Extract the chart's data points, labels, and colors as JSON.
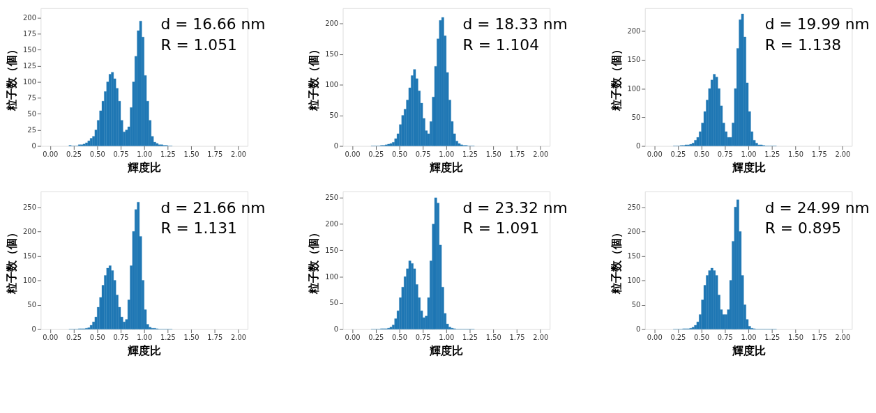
{
  "chart_data": [
    {
      "type": "histogram",
      "xlabel": "輝度比",
      "ylabel": "粒子数（個）",
      "annotations": [
        "d = 16.66 nm",
        "R = 1.051"
      ],
      "color": "#1f77b4",
      "grid": false,
      "bins": [
        0.2,
        0.225,
        0.25,
        0.275,
        0.3,
        0.325,
        0.35,
        0.375,
        0.4,
        0.425,
        0.45,
        0.475,
        0.5,
        0.525,
        0.55,
        0.575,
        0.6,
        0.625,
        0.65,
        0.675,
        0.7,
        0.725,
        0.75,
        0.775,
        0.8,
        0.825,
        0.85,
        0.875,
        0.9,
        0.925,
        0.95,
        0.975,
        1.0,
        1.025,
        1.05,
        1.075,
        1.1,
        1.125,
        1.15,
        1.175,
        1.2,
        1.225,
        1.25,
        1.275,
        1.3
      ],
      "values": [
        1,
        0,
        0,
        0,
        2,
        2,
        3,
        5,
        8,
        12,
        15,
        25,
        40,
        55,
        70,
        85,
        100,
        112,
        115,
        105,
        90,
        70,
        40,
        22,
        25,
        30,
        60,
        100,
        140,
        180,
        195,
        170,
        110,
        70,
        40,
        15,
        6,
        4,
        2,
        2,
        1,
        1,
        0,
        0
      ],
      "xlim": [
        -0.1,
        2.1
      ],
      "xticks": [
        {
          "value": 0,
          "label": "0.00"
        },
        {
          "value": 0.25,
          "label": "0.25"
        },
        {
          "value": 0.5,
          "label": "0.50"
        },
        {
          "value": 0.75,
          "label": "0.75"
        },
        {
          "value": 1,
          "label": "1.00"
        },
        {
          "value": 1.25,
          "label": "1.25"
        },
        {
          "value": 1.5,
          "label": "1.50"
        },
        {
          "value": 1.75,
          "label": "1.75"
        },
        {
          "value": 2,
          "label": "2.00"
        }
      ],
      "ylim": [
        0,
        215
      ],
      "yticks": [
        0,
        25,
        50,
        75,
        100,
        125,
        150,
        175,
        200
      ]
    },
    {
      "type": "histogram",
      "xlabel": "輝度比",
      "ylabel": "粒子数（個）",
      "annotations": [
        "d = 18.33 nm",
        "R = 1.104"
      ],
      "color": "#1f77b4",
      "grid": false,
      "bins": [
        0.2,
        0.225,
        0.25,
        0.275,
        0.3,
        0.325,
        0.35,
        0.375,
        0.4,
        0.425,
        0.45,
        0.475,
        0.5,
        0.525,
        0.55,
        0.575,
        0.6,
        0.625,
        0.65,
        0.675,
        0.7,
        0.725,
        0.75,
        0.775,
        0.8,
        0.825,
        0.85,
        0.875,
        0.9,
        0.925,
        0.95,
        0.975,
        1.0,
        1.025,
        1.05,
        1.075,
        1.1,
        1.125,
        1.15,
        1.175,
        1.2,
        1.225,
        1.25,
        1.275,
        1.3
      ],
      "values": [
        0,
        0,
        0,
        0,
        1,
        1,
        2,
        3,
        4,
        6,
        12,
        20,
        35,
        50,
        60,
        75,
        95,
        115,
        125,
        110,
        90,
        70,
        45,
        25,
        20,
        40,
        80,
        130,
        175,
        205,
        210,
        180,
        120,
        75,
        40,
        20,
        8,
        4,
        2,
        1,
        1,
        0,
        0,
        0
      ],
      "xlim": [
        -0.1,
        2.1
      ],
      "xticks": [
        {
          "value": 0,
          "label": "0.00"
        },
        {
          "value": 0.25,
          "label": "0.25"
        },
        {
          "value": 0.5,
          "label": "0.50"
        },
        {
          "value": 0.75,
          "label": "0.75"
        },
        {
          "value": 1,
          "label": "1.00"
        },
        {
          "value": 1.25,
          "label": "1.25"
        },
        {
          "value": 1.5,
          "label": "1.50"
        },
        {
          "value": 1.75,
          "label": "1.75"
        },
        {
          "value": 2,
          "label": "2.00"
        }
      ],
      "ylim": [
        0,
        225
      ],
      "yticks": [
        0,
        50,
        100,
        150,
        200
      ]
    },
    {
      "type": "histogram",
      "xlabel": "輝度比",
      "ylabel": "粒子数（個）",
      "annotations": [
        "d = 19.99 nm",
        "R = 1.138"
      ],
      "color": "#1f77b4",
      "grid": false,
      "bins": [
        0.2,
        0.225,
        0.25,
        0.275,
        0.3,
        0.325,
        0.35,
        0.375,
        0.4,
        0.425,
        0.45,
        0.475,
        0.5,
        0.525,
        0.55,
        0.575,
        0.6,
        0.625,
        0.65,
        0.675,
        0.7,
        0.725,
        0.75,
        0.775,
        0.8,
        0.825,
        0.85,
        0.875,
        0.9,
        0.925,
        0.95,
        0.975,
        1.0,
        1.025,
        1.05,
        1.075,
        1.1,
        1.125,
        1.15,
        1.175,
        1.2,
        1.225,
        1.25,
        1.275,
        1.3
      ],
      "values": [
        0,
        0,
        0,
        1,
        1,
        2,
        2,
        3,
        5,
        10,
        15,
        25,
        40,
        60,
        80,
        100,
        115,
        125,
        120,
        100,
        70,
        40,
        25,
        15,
        15,
        40,
        100,
        170,
        220,
        230,
        190,
        110,
        60,
        25,
        10,
        5,
        2,
        2,
        1,
        0,
        0,
        0,
        0,
        0
      ],
      "xlim": [
        -0.1,
        2.1
      ],
      "xticks": [
        {
          "value": 0,
          "label": "0.00"
        },
        {
          "value": 0.25,
          "label": "0.25"
        },
        {
          "value": 0.5,
          "label": "0.50"
        },
        {
          "value": 0.75,
          "label": "0.75"
        },
        {
          "value": 1,
          "label": "1.00"
        },
        {
          "value": 1.25,
          "label": "1.25"
        },
        {
          "value": 1.5,
          "label": "1.50"
        },
        {
          "value": 1.75,
          "label": "1.75"
        },
        {
          "value": 2,
          "label": "2.00"
        }
      ],
      "ylim": [
        0,
        240
      ],
      "yticks": [
        0,
        50,
        100,
        150,
        200
      ]
    },
    {
      "type": "histogram",
      "xlabel": "輝度比",
      "ylabel": "粒子数（個）",
      "annotations": [
        "d = 21.66 nm",
        "R = 1.131"
      ],
      "color": "#1f77b4",
      "grid": false,
      "bins": [
        0.2,
        0.225,
        0.25,
        0.275,
        0.3,
        0.325,
        0.35,
        0.375,
        0.4,
        0.425,
        0.45,
        0.475,
        0.5,
        0.525,
        0.55,
        0.575,
        0.6,
        0.625,
        0.65,
        0.675,
        0.7,
        0.725,
        0.75,
        0.775,
        0.8,
        0.825,
        0.85,
        0.875,
        0.9,
        0.925,
        0.95,
        0.975,
        1.0,
        1.025,
        1.05,
        1.075,
        1.1,
        1.125,
        1.15,
        1.175,
        1.2,
        1.225,
        1.25,
        1.275,
        1.3
      ],
      "values": [
        0,
        0,
        0,
        0,
        1,
        1,
        1,
        2,
        3,
        8,
        15,
        25,
        45,
        65,
        90,
        110,
        125,
        130,
        120,
        100,
        70,
        45,
        25,
        15,
        20,
        60,
        130,
        200,
        245,
        260,
        190,
        100,
        40,
        10,
        4,
        2,
        2,
        1,
        0,
        0,
        0,
        0,
        0,
        0
      ],
      "xlim": [
        -0.1,
        2.1
      ],
      "xticks": [
        {
          "value": 0,
          "label": "0.00"
        },
        {
          "value": 0.25,
          "label": "0.25"
        },
        {
          "value": 0.5,
          "label": "0.50"
        },
        {
          "value": 0.75,
          "label": "0.75"
        },
        {
          "value": 1,
          "label": "1.00"
        },
        {
          "value": 1.25,
          "label": "1.25"
        },
        {
          "value": 1.5,
          "label": "1.50"
        },
        {
          "value": 1.75,
          "label": "1.75"
        },
        {
          "value": 2,
          "label": "2.00"
        }
      ],
      "ylim": [
        0,
        282
      ],
      "yticks": [
        0,
        50,
        100,
        150,
        200,
        250
      ]
    },
    {
      "type": "histogram",
      "xlabel": "輝度比",
      "ylabel": "粒子数（個）",
      "annotations": [
        "d = 23.32 nm",
        "R = 1.091"
      ],
      "color": "#1f77b4",
      "grid": false,
      "bins": [
        0.2,
        0.225,
        0.25,
        0.275,
        0.3,
        0.325,
        0.35,
        0.375,
        0.4,
        0.425,
        0.45,
        0.475,
        0.5,
        0.525,
        0.55,
        0.575,
        0.6,
        0.625,
        0.65,
        0.675,
        0.7,
        0.725,
        0.75,
        0.775,
        0.8,
        0.825,
        0.85,
        0.875,
        0.9,
        0.925,
        0.95,
        0.975,
        1.0,
        1.025,
        1.05,
        1.075,
        1.1,
        1.125,
        1.15,
        1.175,
        1.2,
        1.225,
        1.25,
        1.275,
        1.3
      ],
      "values": [
        0,
        0,
        0,
        0,
        1,
        1,
        1,
        2,
        4,
        8,
        20,
        35,
        60,
        80,
        100,
        115,
        130,
        125,
        115,
        85,
        60,
        35,
        22,
        25,
        60,
        130,
        200,
        250,
        240,
        160,
        80,
        30,
        10,
        4,
        2,
        1,
        0,
        0,
        0,
        0,
        0,
        0,
        0,
        0
      ],
      "xlim": [
        -0.1,
        2.1
      ],
      "xticks": [
        {
          "value": 0,
          "label": "0.00"
        },
        {
          "value": 0.25,
          "label": "0.25"
        },
        {
          "value": 0.5,
          "label": "0.50"
        },
        {
          "value": 0.75,
          "label": "0.75"
        },
        {
          "value": 1,
          "label": "1.00"
        },
        {
          "value": 1.25,
          "label": "1.25"
        },
        {
          "value": 1.5,
          "label": "1.50"
        },
        {
          "value": 1.75,
          "label": "1.75"
        },
        {
          "value": 2,
          "label": "2.00"
        }
      ],
      "ylim": [
        0,
        262
      ],
      "yticks": [
        0,
        50,
        100,
        150,
        200,
        250
      ]
    },
    {
      "type": "histogram",
      "xlabel": "輝度比",
      "ylabel": "粒子数（個）",
      "annotations": [
        "d = 24.99 nm",
        "R = 0.895"
      ],
      "color": "#1f77b4",
      "grid": false,
      "bins": [
        0.2,
        0.225,
        0.25,
        0.275,
        0.3,
        0.325,
        0.35,
        0.375,
        0.4,
        0.425,
        0.45,
        0.475,
        0.5,
        0.525,
        0.55,
        0.575,
        0.6,
        0.625,
        0.65,
        0.675,
        0.7,
        0.725,
        0.75,
        0.775,
        0.8,
        0.825,
        0.85,
        0.875,
        0.9,
        0.925,
        0.95,
        0.975,
        1.0,
        1.025,
        1.05,
        1.075,
        1.1,
        1.125,
        1.15,
        1.175,
        1.2,
        1.225,
        1.25,
        1.275,
        1.3
      ],
      "values": [
        0,
        0,
        0,
        0,
        1,
        1,
        1,
        2,
        4,
        8,
        15,
        30,
        60,
        90,
        110,
        120,
        125,
        120,
        110,
        70,
        40,
        30,
        30,
        40,
        100,
        180,
        250,
        265,
        200,
        110,
        50,
        20,
        6,
        2,
        1,
        0,
        0,
        0,
        0,
        0,
        0,
        0,
        0,
        0
      ],
      "xlim": [
        -0.1,
        2.1
      ],
      "xticks": [
        {
          "value": 0,
          "label": "0.00"
        },
        {
          "value": 0.25,
          "label": "0.25"
        },
        {
          "value": 0.5,
          "label": "0.50"
        },
        {
          "value": 0.75,
          "label": "0.75"
        },
        {
          "value": 1,
          "label": "1.00"
        },
        {
          "value": 1.25,
          "label": "1.25"
        },
        {
          "value": 1.5,
          "label": "1.50"
        },
        {
          "value": 1.75,
          "label": "1.75"
        },
        {
          "value": 2,
          "label": "2.00"
        }
      ],
      "ylim": [
        0,
        282
      ],
      "yticks": [
        0,
        50,
        100,
        150,
        200,
        250
      ]
    }
  ]
}
